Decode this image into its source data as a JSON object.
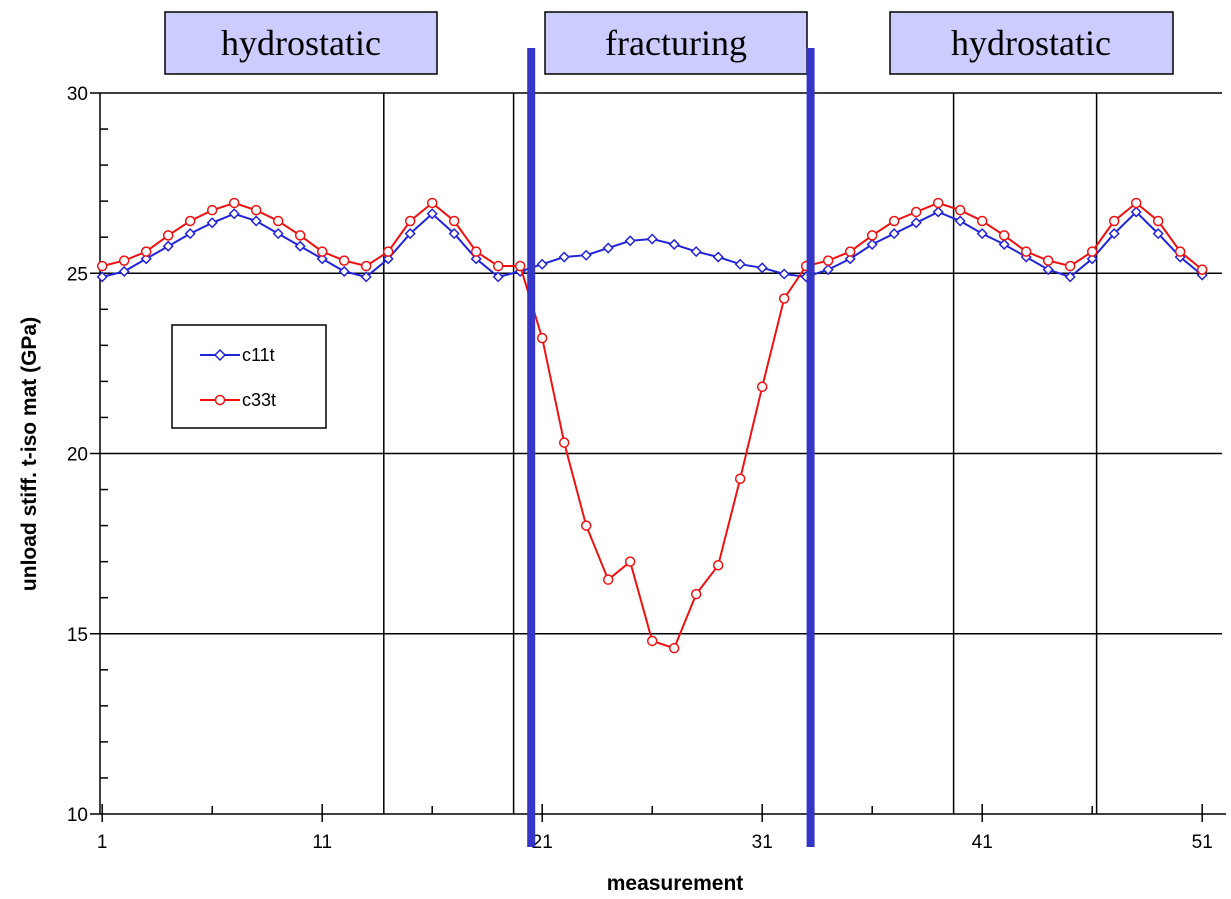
{
  "colors": {
    "c11t": "#2323d8",
    "c33t": "#ee1111",
    "boundary": "#3535c8",
    "phase_box_fill": "#ccccff"
  },
  "chart_data": {
    "type": "line",
    "xlabel": "measurement",
    "ylabel": "unload stiff. t-iso mat (GPa)",
    "xlim": [
      1,
      52
    ],
    "ylim": [
      10,
      30
    ],
    "x_ticks": [
      1,
      11,
      21,
      31,
      41,
      51
    ],
    "y_ticks": [
      10,
      15,
      20,
      25,
      30
    ],
    "grid": "horizontal gridlines at 15, 20, 25, 30",
    "legend": "left, inside plot",
    "series": [
      {
        "name": "c11t",
        "marker": "diamond",
        "values": [
          24.9,
          25.05,
          25.4,
          25.75,
          26.1,
          26.4,
          26.65,
          26.45,
          26.1,
          25.75,
          25.4,
          25.05,
          24.9,
          25.4,
          26.1,
          26.65,
          26.1,
          25.4,
          24.9,
          25.05,
          25.25,
          25.45,
          25.5,
          25.7,
          25.9,
          25.95,
          25.8,
          25.6,
          25.45,
          25.25,
          25.15,
          24.98,
          24.9,
          25.1,
          25.4,
          25.8,
          26.1,
          26.4,
          26.7,
          26.45,
          26.1,
          25.8,
          25.45,
          25.1,
          24.9,
          25.4,
          26.1,
          26.7,
          26.1,
          25.45,
          24.95
        ]
      },
      {
        "name": "c33t",
        "marker": "circle",
        "values": [
          25.2,
          25.35,
          25.6,
          26.05,
          26.45,
          26.75,
          26.95,
          26.75,
          26.45,
          26.05,
          25.6,
          25.35,
          25.2,
          25.6,
          26.45,
          26.95,
          26.45,
          25.6,
          25.2,
          25.2,
          23.2,
          20.3,
          18.0,
          16.5,
          17.0,
          14.8,
          14.6,
          16.1,
          16.9,
          19.3,
          21.85,
          24.3,
          25.2,
          25.35,
          25.6,
          26.05,
          26.45,
          26.7,
          26.95,
          26.75,
          26.45,
          26.05,
          25.6,
          25.35,
          25.2,
          25.6,
          26.45,
          26.95,
          26.45,
          25.6,
          25.1
        ]
      }
    ],
    "stage_dividers": [
      13.8,
      19.7,
      39.7,
      46.2
    ],
    "phase_boundaries": [
      20.5,
      33.2
    ],
    "phases": [
      "hydrostatic",
      "fracturing",
      "hydrostatic"
    ]
  }
}
